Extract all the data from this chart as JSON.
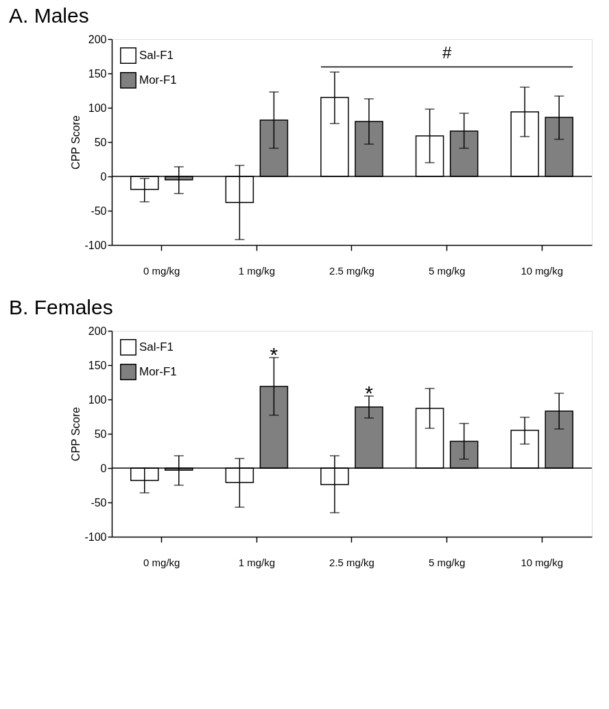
{
  "chart_data": [
    {
      "type": "bar",
      "title": "A. Males",
      "ylabel": "CPP Score",
      "categories": [
        "0 mg/kg",
        "1 mg/kg",
        "2.5 mg/kg",
        "5 mg/kg",
        "10 mg/kg"
      ],
      "series": [
        {
          "name": "Sal-F1",
          "color": "#ffffff",
          "values": [
            -19,
            -38,
            115,
            59,
            94
          ],
          "errors": [
            [
              -37,
              -3
            ],
            [
              -92,
              16
            ],
            [
              77,
              152
            ],
            [
              20,
              98
            ],
            [
              58,
              130
            ]
          ]
        },
        {
          "name": "Mor-F1",
          "color": "#808080",
          "values": [
            -5,
            82,
            80,
            66,
            86
          ],
          "errors": [
            [
              -25,
              14
            ],
            [
              41,
              123
            ],
            [
              47,
              113
            ],
            [
              41,
              92
            ],
            [
              54,
              117
            ]
          ]
        }
      ],
      "ylim": [
        -100,
        200
      ],
      "yticks": [
        -100,
        -50,
        0,
        50,
        100,
        150,
        200
      ],
      "grid": false,
      "legend": "top left",
      "ref_lines": [
        {
          "axis": "y",
          "value": 0
        }
      ],
      "annotations": [
        "#"
      ]
    },
    {
      "type": "bar",
      "title": "B. Females",
      "ylabel": "CPP Score",
      "categories": [
        "0 mg/kg",
        "1 mg/kg",
        "2.5 mg/kg",
        "5 mg/kg",
        "10 mg/kg"
      ],
      "series": [
        {
          "name": "Sal-F1",
          "color": "#ffffff",
          "values": [
            -18,
            -21,
            -24,
            87,
            55
          ],
          "errors": [
            [
              -36,
              0
            ],
            [
              -57,
              14
            ],
            [
              -65,
              18
            ],
            [
              58,
              116
            ],
            [
              35,
              74
            ]
          ]
        },
        {
          "name": "Mor-F1",
          "color": "#808080",
          "values": [
            -3,
            119,
            89,
            39,
            83
          ],
          "errors": [
            [
              -25,
              18
            ],
            [
              77,
              161
            ],
            [
              73,
              105
            ],
            [
              13,
              65
            ],
            [
              57,
              109
            ]
          ]
        }
      ],
      "ylim": [
        -100,
        200
      ],
      "yticks": [
        -100,
        -50,
        0,
        50,
        100,
        150,
        200
      ],
      "grid": false,
      "legend": "top left",
      "ref_lines": [
        {
          "axis": "y",
          "value": 0
        }
      ],
      "annotations": [
        "*",
        "*"
      ]
    }
  ]
}
